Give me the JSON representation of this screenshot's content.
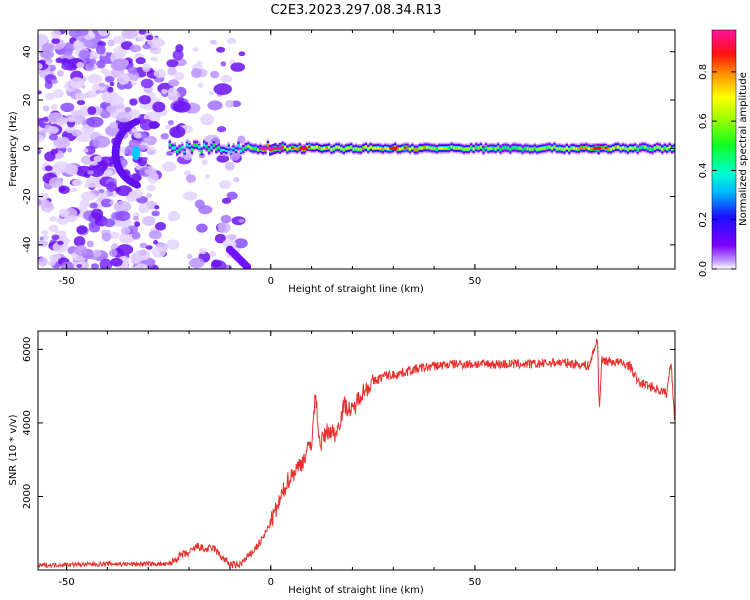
{
  "figure": {
    "title": "C2E3.2023.297.08.34.R13"
  },
  "chart_data": [
    {
      "type": "heatmap",
      "xlabel": "Height of straight line (km)",
      "ylabel": "Frequency (Hz)",
      "xlim": [
        -57,
        99
      ],
      "ylim": [
        -50,
        49
      ],
      "xticks": [
        -50,
        0,
        50
      ],
      "yticks": [
        -40,
        -20,
        0,
        20,
        40
      ],
      "colorbar": {
        "label": "Normalized spectral amplitude",
        "range": [
          0,
          0.97
        ],
        "ticks": [
          0.0,
          0.2,
          0.4,
          0.6,
          0.8
        ],
        "colormap": "rainbow (purple → blue → cyan → green → yellow → red → magenta)"
      },
      "features": {
        "signal_band_center_hz": 0,
        "signal_band_start_km": -25,
        "noise_region_km": [
          -57,
          -7
        ],
        "signal_ridge_x_km": [
          -25,
          -20,
          -15,
          -10,
          -5,
          0,
          5,
          10,
          15,
          20,
          25,
          30,
          40,
          50,
          60,
          70,
          80,
          90,
          99
        ],
        "signal_ridge_amplitude": [
          0.45,
          0.4,
          0.45,
          0.35,
          0.5,
          0.85,
          0.7,
          0.75,
          0.65,
          0.6,
          0.7,
          0.75,
          0.6,
          0.55,
          0.5,
          0.6,
          0.8,
          0.5,
          0.6
        ]
      }
    },
    {
      "type": "line",
      "xlabel": "Height of straight line (km)",
      "ylabel": "SNR (10 * v/v)",
      "xlim": [
        -57,
        99
      ],
      "ylim": [
        0,
        6500
      ],
      "xticks": [
        -50,
        0,
        50
      ],
      "yticks": [
        2000,
        4000,
        6000
      ],
      "color": "#e8302c",
      "series": [
        {
          "x": [
            -57,
            -50,
            -45,
            -40,
            -35,
            -30,
            -25,
            -22,
            -20,
            -18,
            -16,
            -14,
            -12,
            -10,
            -8,
            -6,
            -4,
            -2,
            0,
            2,
            4,
            6,
            8,
            10,
            11,
            12,
            14,
            16,
            18,
            20,
            22,
            25,
            28,
            30,
            35,
            40,
            45,
            50,
            55,
            60,
            65,
            70,
            75,
            78,
            80,
            80.5,
            81,
            85,
            88,
            90,
            93,
            95,
            97,
            98,
            99
          ],
          "y": [
            120,
            150,
            150,
            170,
            160,
            170,
            150,
            400,
            450,
            650,
            550,
            600,
            350,
            150,
            120,
            300,
            550,
            850,
            1300,
            1800,
            2400,
            2700,
            3000,
            3500,
            4800,
            3400,
            3800,
            3700,
            4500,
            4300,
            4800,
            5100,
            5300,
            5300,
            5450,
            5550,
            5600,
            5600,
            5600,
            5600,
            5600,
            5650,
            5600,
            5550,
            6300,
            4300,
            5700,
            5650,
            5550,
            5100,
            5000,
            4900,
            4800,
            5700,
            4000
          ]
        }
      ]
    }
  ]
}
